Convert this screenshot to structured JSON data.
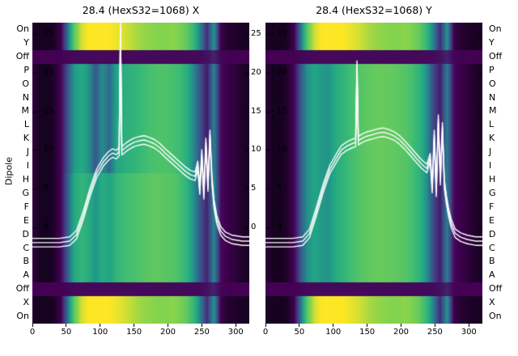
{
  "figure": {
    "background": "#ffffff"
  },
  "chart_data": {
    "type": "heatmap",
    "description": "Two heatmap panels (22 dipole rows x BPM position) with overlaid white orbit traces",
    "ylabel_left": "Dipole",
    "xlim": [
      0,
      320
    ],
    "ylim": [
      -12.5,
      26.5
    ],
    "x_ticks": [
      0,
      50,
      100,
      150,
      200,
      250,
      300
    ],
    "y_ticks": [
      25,
      20,
      15,
      10,
      5,
      0
    ],
    "row_labels": [
      "On",
      "Y",
      "Off",
      "P",
      "O",
      "N",
      "M",
      "L",
      "K",
      "J",
      "I",
      "H",
      "G",
      "F",
      "E",
      "D",
      "C",
      "B",
      "A",
      "Off",
      "X",
      "On"
    ],
    "trace_offsets": [
      0,
      0.55,
      -0.55
    ],
    "colormap": [
      [
        0,
        "#05030d"
      ],
      [
        0.12,
        "#440154"
      ],
      [
        0.28,
        "#414487"
      ],
      [
        0.42,
        "#2a788e"
      ],
      [
        0.55,
        "#21a585"
      ],
      [
        0.7,
        "#3dbc74"
      ],
      [
        0.85,
        "#7ad151"
      ],
      [
        1,
        "#fde725"
      ]
    ],
    "profiles": {
      "bright": [
        0.05,
        0.03,
        0.03,
        0.04,
        0.1,
        0.4,
        0.8,
        0.95,
        1,
        1,
        1,
        1,
        0.98,
        0.96,
        0.93,
        0.9,
        0.88,
        0.87,
        0.86,
        0.86,
        0.87,
        0.85,
        0.8,
        0.68,
        0.45,
        0.22,
        0.5,
        0.1,
        0.06,
        0.05,
        0.04,
        0.04
      ],
      "off": [
        0.12,
        0.12,
        0.12,
        0.12,
        0.12,
        0.13,
        0.14,
        0.14,
        0.14,
        0.14,
        0.14,
        0.14,
        0.14,
        0.14,
        0.14,
        0.14,
        0.14,
        0.14,
        0.14,
        0.14,
        0.14,
        0.14,
        0.14,
        0.14,
        0.14,
        0.16,
        0.2,
        0.13,
        0.12,
        0.12,
        0.12,
        0.12
      ],
      "midA": [
        0.08,
        0.03,
        0.03,
        0.05,
        0.12,
        0.32,
        0.52,
        0.58,
        0.5,
        0.33,
        0.48,
        0.38,
        0.55,
        0.6,
        0.63,
        0.66,
        0.7,
        0.73,
        0.74,
        0.74,
        0.73,
        0.7,
        0.62,
        0.48,
        0.32,
        0.18,
        0.45,
        0.14,
        0.1,
        0.08,
        0.05,
        0.04
      ],
      "midB": [
        0.08,
        0.03,
        0.03,
        0.05,
        0.12,
        0.35,
        0.58,
        0.65,
        0.6,
        0.5,
        0.6,
        0.55,
        0.65,
        0.7,
        0.72,
        0.74,
        0.76,
        0.78,
        0.78,
        0.77,
        0.76,
        0.73,
        0.65,
        0.5,
        0.33,
        0.2,
        0.47,
        0.14,
        0.1,
        0.08,
        0.05,
        0.04
      ],
      "midC": [
        0.08,
        0.03,
        0.03,
        0.05,
        0.12,
        0.33,
        0.5,
        0.55,
        0.52,
        0.5,
        0.58,
        0.64,
        0.7,
        0.74,
        0.77,
        0.79,
        0.8,
        0.8,
        0.79,
        0.78,
        0.76,
        0.72,
        0.64,
        0.5,
        0.3,
        0.18,
        0.44,
        0.14,
        0.1,
        0.08,
        0.05,
        0.04
      ]
    },
    "panels": [
      {
        "title": "28.4 (HexS32=1068) X",
        "rows": [
          "bright",
          "bright",
          "off",
          "midA",
          "midA",
          "midA",
          "midA",
          "midA",
          "midA",
          "midA",
          "midA",
          "midB",
          "midB",
          "midB",
          "midB",
          "midB",
          "midB",
          "midB",
          "midB",
          "off",
          "bright",
          "bright"
        ],
        "curve": {
          "x": [
            0,
            20,
            40,
            55,
            65,
            75,
            85,
            95,
            105,
            112,
            118,
            124,
            128,
            130,
            132,
            136,
            142,
            150,
            158,
            165,
            172,
            180,
            188,
            196,
            205,
            215,
            225,
            233,
            240,
            244,
            247,
            250,
            253,
            256,
            259,
            262,
            265,
            268,
            272,
            278,
            285,
            295,
            310,
            320
          ],
          "y": [
            -2,
            -2,
            -2,
            -1.8,
            -1,
            1.5,
            4.5,
            7,
            8.5,
            9.2,
            9.6,
            9.4,
            9.8,
            26,
            9.9,
            10.2,
            10.6,
            11,
            11.2,
            11.3,
            11.1,
            10.8,
            10.3,
            9.6,
            8.9,
            8.1,
            7.3,
            6.8,
            6.6,
            8,
            4.8,
            9.5,
            4.2,
            11,
            5.2,
            12,
            6,
            3,
            1,
            -0.5,
            -1.2,
            -1.6,
            -1.8,
            -1.8
          ]
        }
      },
      {
        "title": "28.4 (HexS32=1068) Y",
        "rows": [
          "bright",
          "bright",
          "off",
          "midC",
          "midC",
          "midC",
          "midC",
          "midC",
          "midC",
          "midC",
          "midC",
          "midC",
          "midC",
          "midC",
          "midC",
          "midC",
          "midC",
          "midC",
          "midC",
          "off",
          "bright",
          "bright"
        ],
        "curve": {
          "x": [
            0,
            20,
            40,
            55,
            65,
            75,
            85,
            95,
            105,
            112,
            120,
            127,
            133,
            135,
            137,
            142,
            150,
            158,
            166,
            174,
            182,
            190,
            198,
            206,
            214,
            222,
            230,
            238,
            243,
            246,
            249,
            252,
            255,
            258,
            261,
            264,
            267,
            270,
            274,
            280,
            288,
            298,
            310,
            320
          ],
          "y": [
            -2,
            -2,
            -2,
            -1.8,
            -0.8,
            2,
            5,
            7.5,
            9,
            10,
            10.5,
            10.8,
            11,
            21,
            11.2,
            11.5,
            11.8,
            12,
            12.2,
            12.3,
            12.1,
            11.8,
            11.3,
            10.6,
            9.8,
            9,
            8.2,
            7.6,
            9,
            5,
            12,
            4.5,
            14,
            6,
            13,
            5.5,
            3.5,
            2,
            0.5,
            -0.8,
            -1.3,
            -1.6,
            -1.8,
            -1.8
          ]
        }
      }
    ]
  }
}
